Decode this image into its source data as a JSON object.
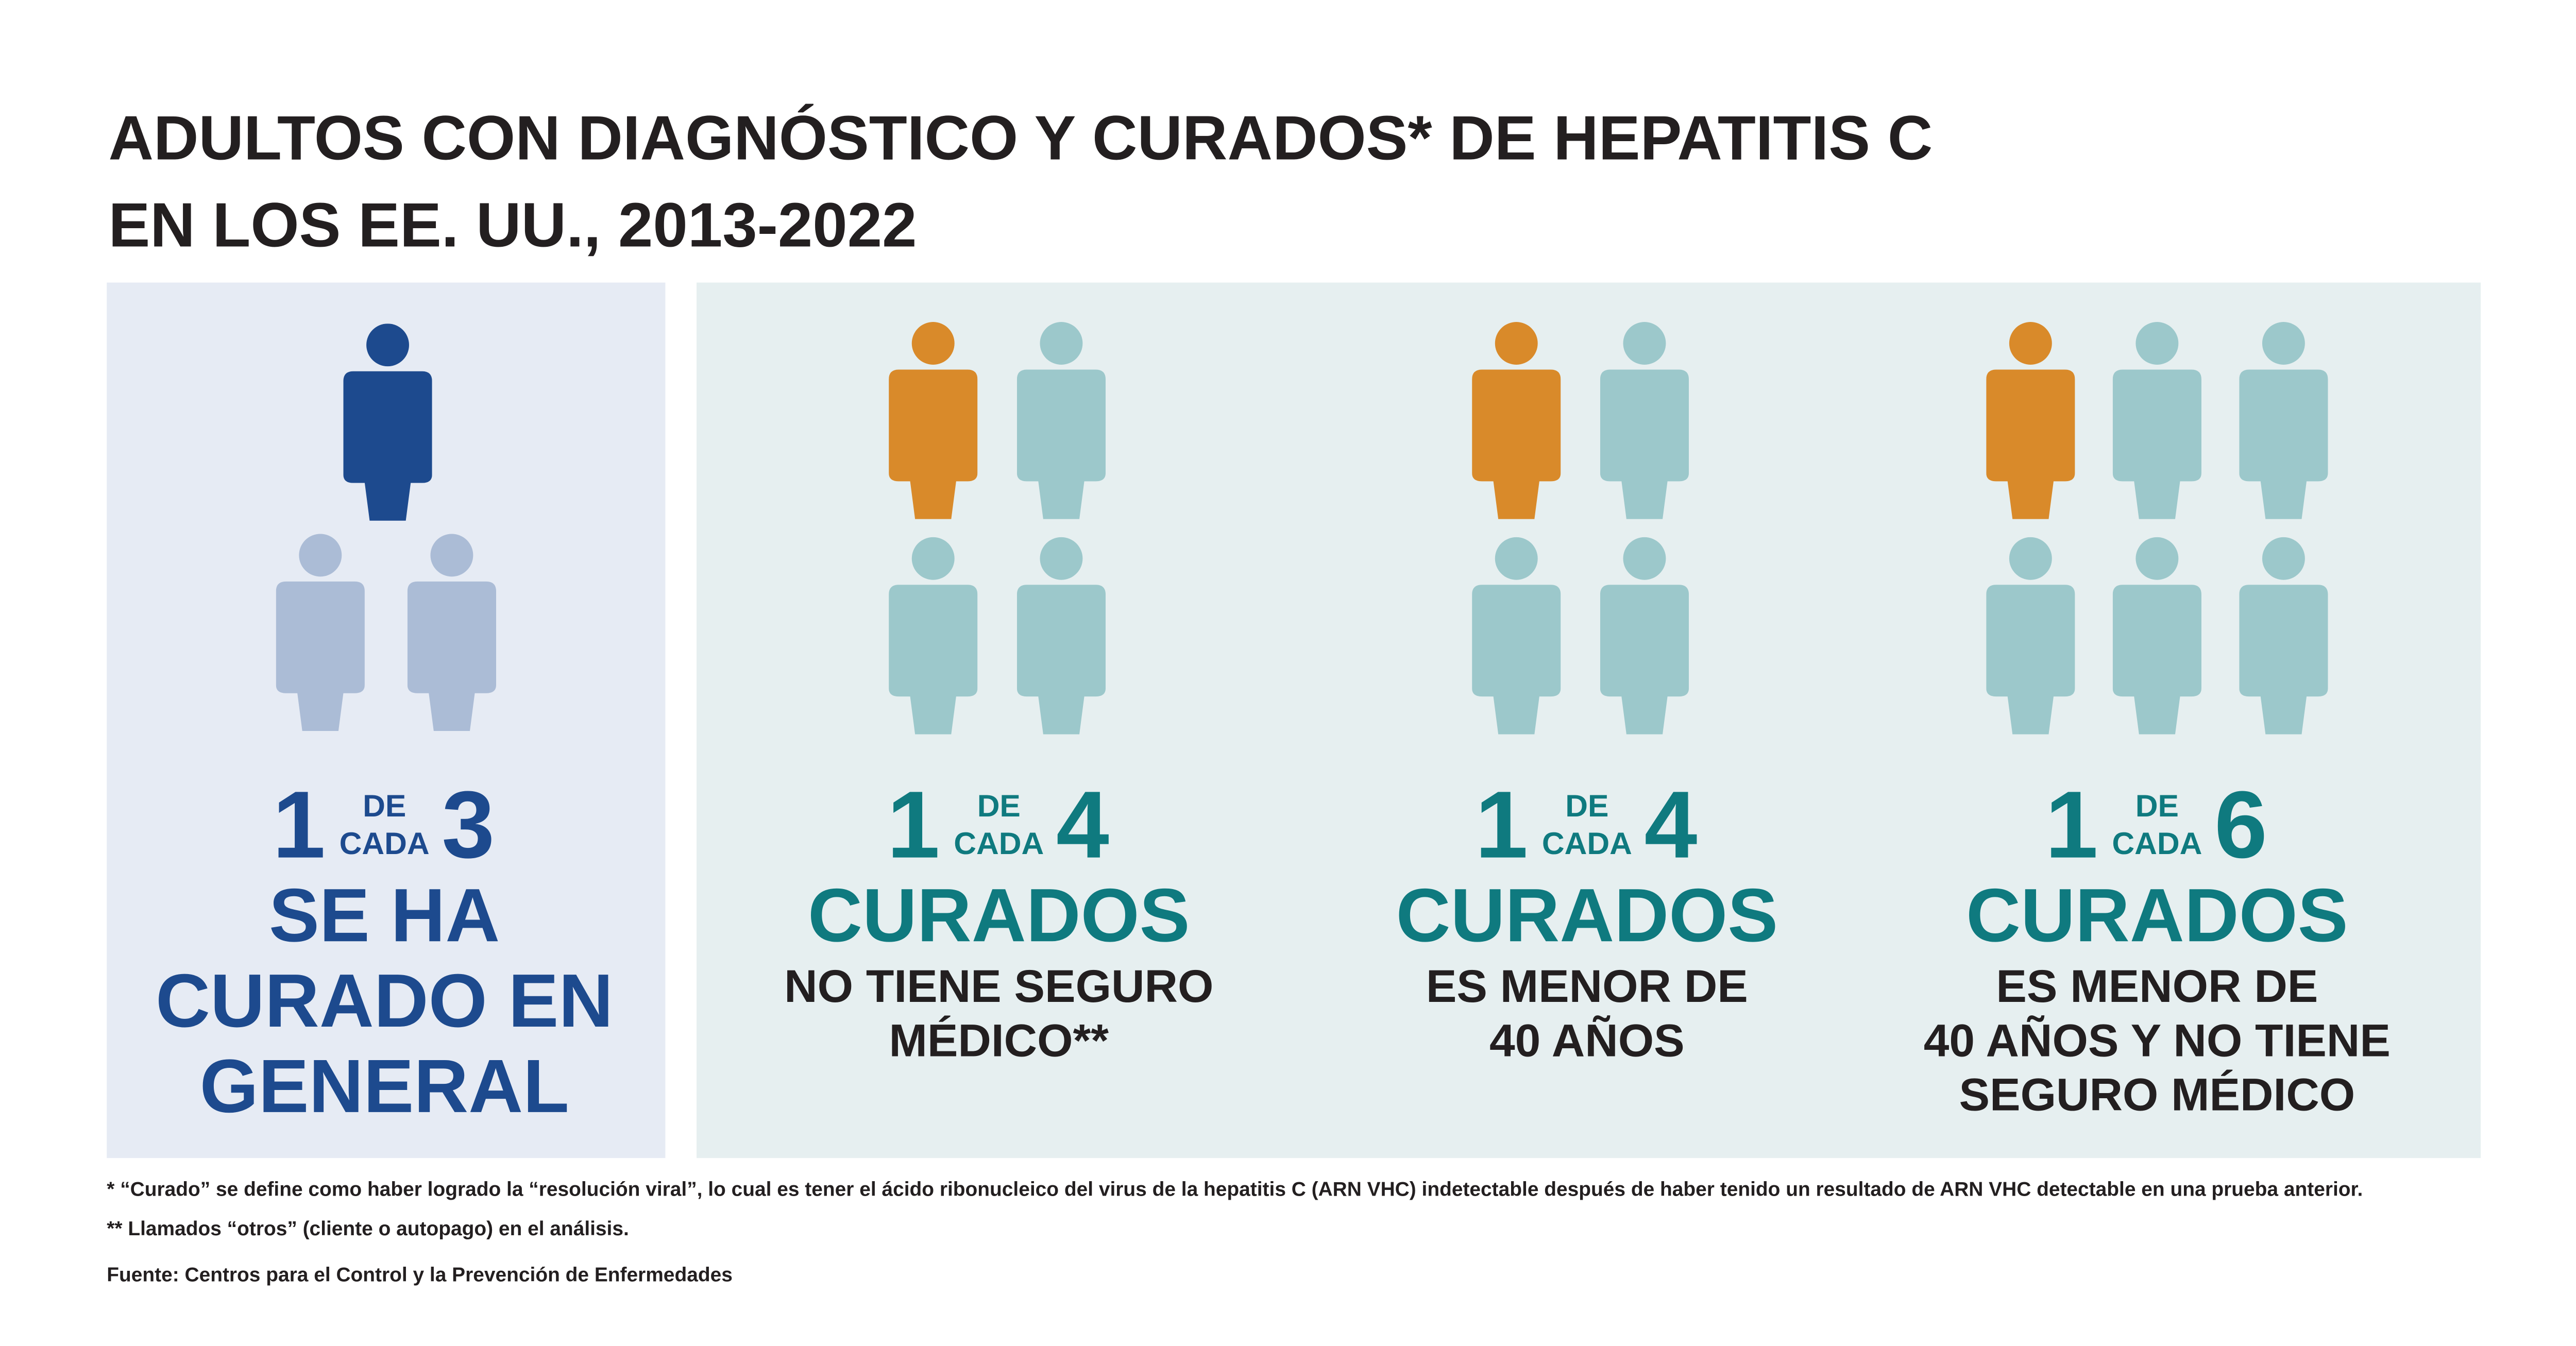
{
  "title": [
    "ADULTOS CON DIAGNÓSTICO Y CURADOS* DE HEPATITIS C",
    "EN LOS EE. UU., 2013-2022"
  ],
  "panels": [
    {
      "ratio": {
        "numerator": "1",
        "de": "DE",
        "cada": "CADA",
        "denominator": "3"
      },
      "heading": [
        "SE HA",
        "CURADO EN",
        "GENERAL"
      ],
      "description": []
    },
    {
      "ratio": {
        "numerator": "1",
        "de": "DE",
        "cada": "CADA",
        "denominator": "4"
      },
      "heading": [
        "CURADOS"
      ],
      "description": [
        "NO TIENE SEGURO",
        "MÉDICO**"
      ]
    },
    {
      "ratio": {
        "numerator": "1",
        "de": "DE",
        "cada": "CADA",
        "denominator": "4"
      },
      "heading": [
        "CURADOS"
      ],
      "description": [
        "ES MENOR DE",
        "40 AÑOS"
      ]
    },
    {
      "ratio": {
        "numerator": "1",
        "de": "DE",
        "cada": "CADA",
        "denominator": "6"
      },
      "heading": [
        "CURADOS"
      ],
      "description": [
        "ES MENOR DE",
        "40 AÑOS Y NO TIENE",
        "SEGURO MÉDICO"
      ]
    }
  ],
  "footnotes": [
    "* “Curado” se define como haber logrado la “resolución viral”, lo cual es tener el ácido ribonucleico del virus de la hepatitis C (ARN VHC) indetectable después de haber tenido un resultado de ARN VHC detectable en una prueba anterior.",
    "** Llamados “otros” (cliente o autopago) en el análisis."
  ],
  "source": "Fuente: Centros para el Control y la Prevención de Enfermedades"
}
